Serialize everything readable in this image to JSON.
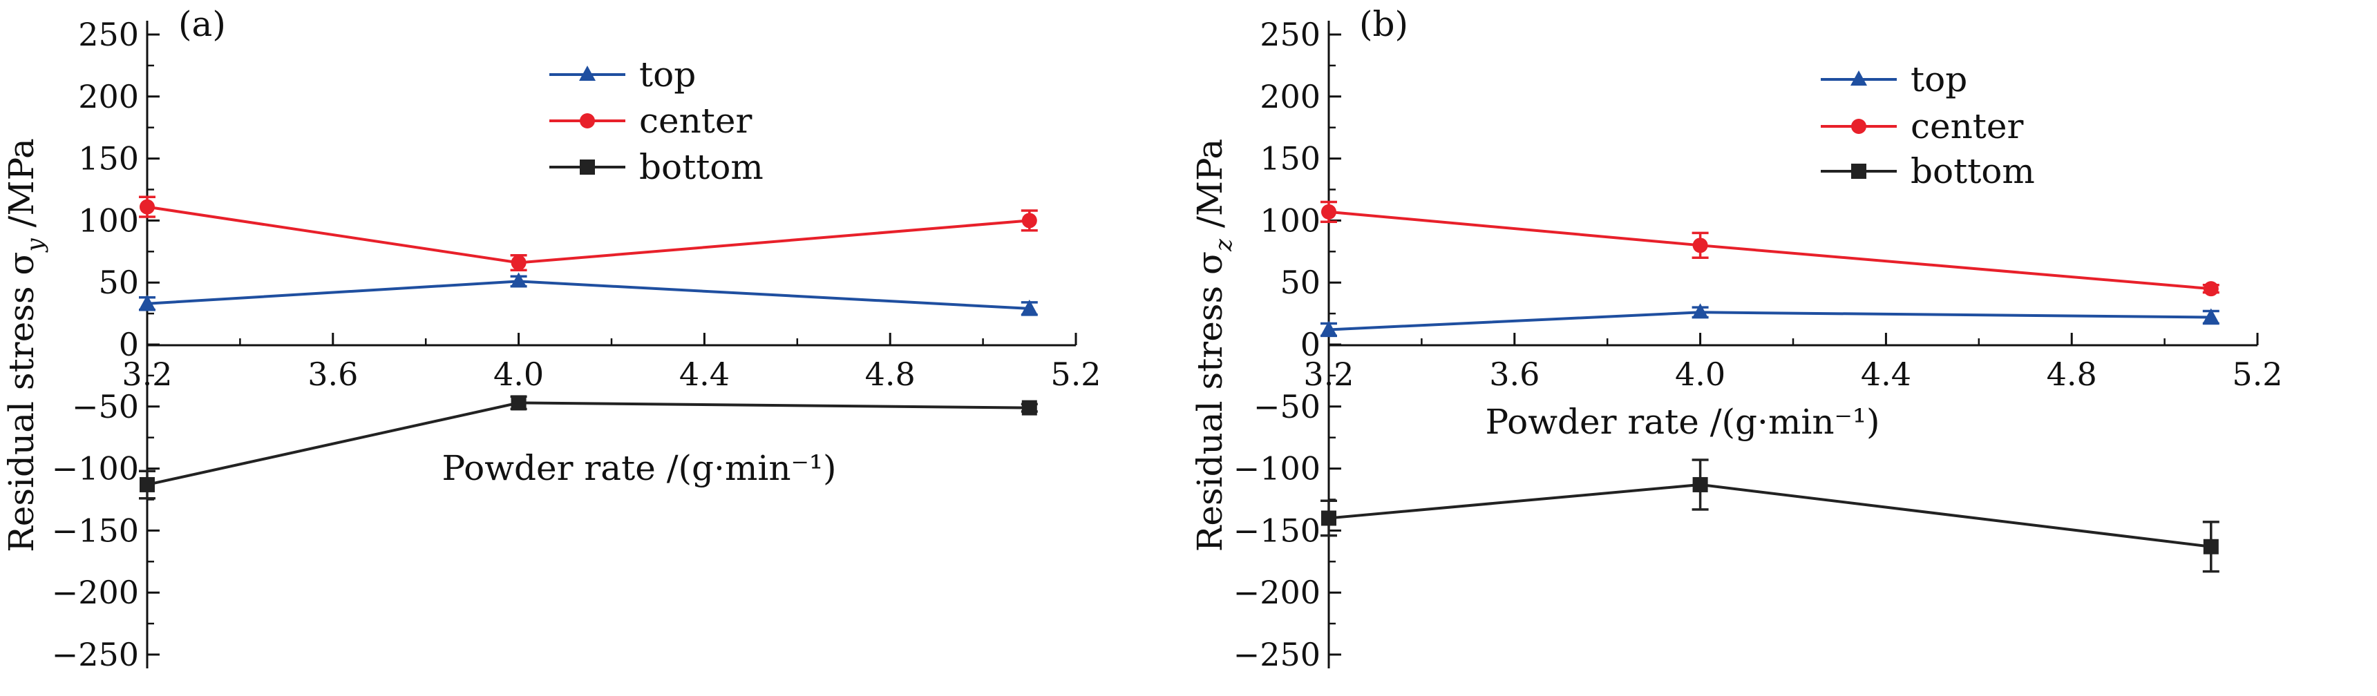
{
  "chart_data": [
    {
      "type": "line",
      "panel_label": "(a)",
      "xlabel": "Powder rate /(g·min⁻¹)",
      "ylabel": "Residual stress σ",
      "ylabel_sub": "y",
      "ylabel_unit": " /MPa",
      "xlim": [
        3.2,
        5.2
      ],
      "ylim": [
        -250,
        250
      ],
      "xticks": [
        3.2,
        3.6,
        4.0,
        4.4,
        4.8,
        5.2
      ],
      "xtick_labels": [
        "3.2",
        "3.6",
        "4.0",
        "4.4",
        "4.8",
        "5.2"
      ],
      "yticks": [
        250,
        200,
        150,
        100,
        50,
        0,
        -50,
        -100,
        -150,
        -200,
        -250
      ],
      "ytick_labels": [
        "250",
        "200",
        "150",
        "100",
        "50",
        "0",
        "−50",
        "−100",
        "−150",
        "−200",
        "−250"
      ],
      "x": [
        3.2,
        4.0,
        5.1
      ],
      "legend_position": "top-center",
      "series": [
        {
          "name": "top",
          "color": "#1f4fa0",
          "marker": "triangle",
          "values": [
            33,
            51,
            29
          ],
          "errors": [
            5,
            4,
            5
          ]
        },
        {
          "name": "center",
          "color": "#e8202a",
          "marker": "circle",
          "values": [
            111,
            66,
            100
          ],
          "errors": [
            8,
            6,
            8
          ]
        },
        {
          "name": "bottom",
          "color": "#222222",
          "marker": "square",
          "values": [
            -113,
            -47,
            -51
          ],
          "errors": [
            11,
            5,
            3
          ]
        }
      ]
    },
    {
      "type": "line",
      "panel_label": "(b)",
      "xlabel": "Powder rate /(g·min⁻¹)",
      "ylabel": "Residual stress σ",
      "ylabel_sub": "z",
      "ylabel_unit": " /MPa",
      "xlim": [
        3.2,
        5.2
      ],
      "ylim": [
        -250,
        250
      ],
      "xticks": [
        3.2,
        3.6,
        4.0,
        4.4,
        4.8,
        5.2
      ],
      "xtick_labels": [
        "3.2",
        "3.6",
        "4.0",
        "4.4",
        "4.8",
        "5.2"
      ],
      "yticks": [
        250,
        200,
        150,
        100,
        50,
        0,
        -50,
        -100,
        -150,
        -200,
        -250
      ],
      "ytick_labels": [
        "250",
        "200",
        "150",
        "100",
        "50",
        "0",
        "−50",
        "−100",
        "−150",
        "−200",
        "−250"
      ],
      "x": [
        3.2,
        4.0,
        5.1
      ],
      "legend_position": "top-center",
      "series": [
        {
          "name": "top",
          "color": "#1f4fa0",
          "marker": "triangle",
          "values": [
            12,
            26,
            22
          ],
          "errors": [
            5,
            4,
            5
          ]
        },
        {
          "name": "center",
          "color": "#e8202a",
          "marker": "circle",
          "values": [
            107,
            80,
            45
          ],
          "errors": [
            8,
            10,
            3
          ]
        },
        {
          "name": "bottom",
          "color": "#222222",
          "marker": "square",
          "values": [
            -140,
            -113,
            -163
          ],
          "errors": [
            14,
            20,
            20
          ]
        }
      ]
    }
  ]
}
